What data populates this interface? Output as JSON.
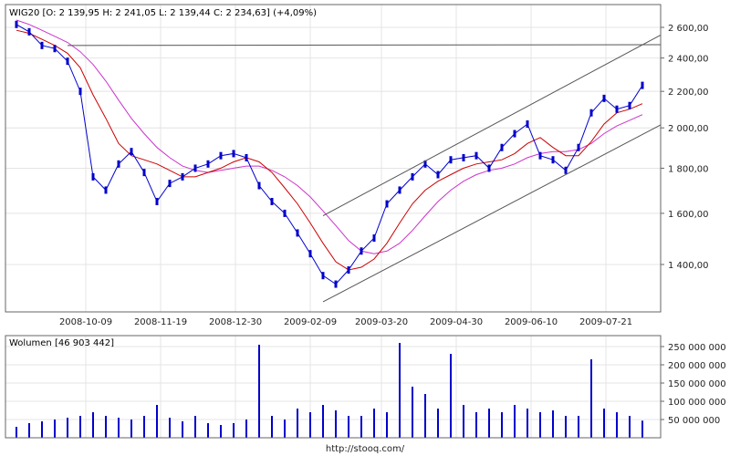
{
  "header": {
    "price": "WIG20 [O: 2 139,95  H: 2 241,05  L: 2 139,44  C: 2 234,63] (+4,09%)",
    "volume": "Wolumen [46 903 442]"
  },
  "footer": {
    "source": "http://stooq.com/"
  },
  "colors": {
    "candle": "#0000cc",
    "ma_short": "#cc0000",
    "ma_long": "#cc33cc",
    "trendline": "#555555",
    "grid": "#e4e4e4",
    "frame": "#666666",
    "volume_bar": "#0000cc"
  },
  "chart_data": [
    {
      "type": "line",
      "title": "WIG20 [O: 2 139,95  H: 2 241,05  L: 2 139,44  C: 2 234,63] (+4,09%)",
      "xlabel": "",
      "ylabel": "",
      "x_tick_labels": [
        "2008-10-09",
        "2008-11-19",
        "2008-12-30",
        "2009-02-09",
        "2009-03-20",
        "2009-04-30",
        "2009-06-10",
        "2009-07-21"
      ],
      "y_tick_labels": [
        "2 600,00",
        "2 400,00",
        "2 200,00",
        "2 000,00",
        "1 800,00",
        "1 600,00",
        "1 400,00"
      ],
      "y_ticks": [
        2600,
        2400,
        2200,
        2000,
        1800,
        1600,
        1400
      ],
      "ylim": [
        1300,
        2700
      ],
      "grid": true,
      "x": [
        "2008-09-01",
        "2008-09-08",
        "2008-09-15",
        "2008-09-22",
        "2008-09-29",
        "2008-10-06",
        "2008-10-13",
        "2008-10-20",
        "2008-10-27",
        "2008-11-03",
        "2008-11-10",
        "2008-11-17",
        "2008-11-24",
        "2008-12-01",
        "2008-12-08",
        "2008-12-15",
        "2008-12-22",
        "2008-12-29",
        "2009-01-05",
        "2009-01-12",
        "2009-01-19",
        "2009-01-26",
        "2009-02-02",
        "2009-02-09",
        "2009-02-16",
        "2009-02-23",
        "2009-03-02",
        "2009-03-09",
        "2009-03-16",
        "2009-03-23",
        "2009-03-30",
        "2009-04-06",
        "2009-04-13",
        "2009-04-20",
        "2009-04-27",
        "2009-05-04",
        "2009-05-11",
        "2009-05-18",
        "2009-05-25",
        "2009-06-01",
        "2009-06-08",
        "2009-06-15",
        "2009-06-22",
        "2009-06-29",
        "2009-07-06",
        "2009-07-13",
        "2009-07-20",
        "2009-07-27",
        "2009-08-03",
        "2009-08-10"
      ],
      "series": [
        {
          "values": [
            2620,
            2570,
            2480,
            2460,
            2380,
            2200,
            1760,
            1700,
            1820,
            1880,
            1780,
            1650,
            1730,
            1760,
            1800,
            1820,
            1860,
            1870,
            1850,
            1720,
            1650,
            1600,
            1520,
            1440,
            1360,
            1330,
            1380,
            1450,
            1500,
            1640,
            1700,
            1760,
            1820,
            1770,
            1840,
            1850,
            1860,
            1800,
            1900,
            1970,
            2020,
            1860,
            1840,
            1790,
            1900,
            2080,
            2160,
            2100,
            2120,
            2234.63
          ]
        },
        {
          "values": [
            2580,
            2560,
            2520,
            2480,
            2430,
            2340,
            2180,
            2050,
            1920,
            1860,
            1840,
            1820,
            1790,
            1760,
            1760,
            1780,
            1800,
            1830,
            1850,
            1830,
            1780,
            1710,
            1640,
            1560,
            1480,
            1410,
            1380,
            1390,
            1420,
            1480,
            1560,
            1640,
            1700,
            1740,
            1770,
            1800,
            1820,
            1830,
            1840,
            1870,
            1920,
            1950,
            1900,
            1860,
            1860,
            1930,
            2020,
            2080,
            2100,
            2130
          ]
        },
        {
          "values": [
            2650,
            2620,
            2580,
            2540,
            2500,
            2440,
            2360,
            2260,
            2150,
            2050,
            1970,
            1900,
            1850,
            1810,
            1790,
            1780,
            1790,
            1800,
            1810,
            1810,
            1790,
            1760,
            1720,
            1670,
            1610,
            1550,
            1490,
            1450,
            1440,
            1450,
            1480,
            1530,
            1590,
            1650,
            1700,
            1740,
            1770,
            1790,
            1800,
            1820,
            1850,
            1870,
            1880,
            1880,
            1890,
            1920,
            1970,
            2010,
            2040,
            2070
          ]
        }
      ]
    },
    {
      "type": "bar",
      "title": "Wolumen [46 903 442]",
      "xlabel": "",
      "ylabel": "",
      "y_tick_labels": [
        "250 000 000",
        "200 000 000",
        "150 000 000",
        "100 000 000",
        "50 000 000"
      ],
      "y_ticks": [
        250000000,
        200000000,
        150000000,
        100000000,
        50000000
      ],
      "ylim": [
        0,
        280000000
      ],
      "x": [
        "2008-09-01",
        "2008-09-08",
        "2008-09-15",
        "2008-09-22",
        "2008-09-29",
        "2008-10-06",
        "2008-10-13",
        "2008-10-20",
        "2008-10-27",
        "2008-11-03",
        "2008-11-10",
        "2008-11-17",
        "2008-11-24",
        "2008-12-01",
        "2008-12-08",
        "2008-12-15",
        "2008-12-22",
        "2008-12-29",
        "2009-01-05",
        "2009-01-12",
        "2009-01-19",
        "2009-01-26",
        "2009-02-02",
        "2009-02-09",
        "2009-02-16",
        "2009-02-23",
        "2009-03-02",
        "2009-03-09",
        "2009-03-16",
        "2009-03-23",
        "2009-03-30",
        "2009-04-06",
        "2009-04-13",
        "2009-04-20",
        "2009-04-27",
        "2009-05-04",
        "2009-05-11",
        "2009-05-18",
        "2009-05-25",
        "2009-06-01",
        "2009-06-08",
        "2009-06-15",
        "2009-06-22",
        "2009-06-29",
        "2009-07-06",
        "2009-07-13",
        "2009-07-20",
        "2009-07-27",
        "2009-08-03",
        "2009-08-10"
      ],
      "values": [
        30000000,
        40000000,
        45000000,
        50000000,
        55000000,
        60000000,
        70000000,
        60000000,
        55000000,
        50000000,
        60000000,
        90000000,
        55000000,
        45000000,
        60000000,
        40000000,
        35000000,
        40000000,
        50000000,
        255000000,
        60000000,
        50000000,
        80000000,
        70000000,
        90000000,
        75000000,
        60000000,
        60000000,
        80000000,
        70000000,
        260000000,
        140000000,
        120000000,
        80000000,
        230000000,
        90000000,
        70000000,
        80000000,
        70000000,
        90000000,
        80000000,
        70000000,
        75000000,
        60000000,
        60000000,
        215000000,
        80000000,
        70000000,
        60000000,
        46903442
      ]
    }
  ]
}
